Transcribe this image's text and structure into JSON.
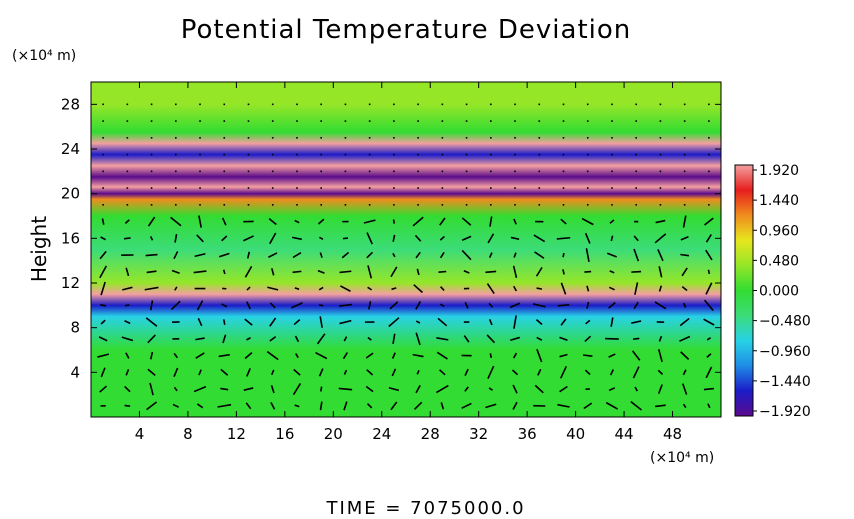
{
  "chart_data": {
    "type": "heatmap",
    "title": "Potential Temperature Deviation",
    "ylabel": "Height",
    "y_unit": "(×10⁴ m)",
    "x_unit": "(×10⁴ m)",
    "xlim": [
      0,
      52
    ],
    "ylim": [
      0,
      30
    ],
    "x_ticks": [
      "4",
      "8",
      "12",
      "16",
      "20",
      "24",
      "28",
      "32",
      "36",
      "40",
      "44",
      "48"
    ],
    "y_ticks": [
      "4",
      "8",
      "12",
      "16",
      "20",
      "24",
      "28"
    ],
    "colorbar": {
      "range": [
        -1.92,
        1.92
      ],
      "ticks": [
        "1.920",
        "1.440",
        "0.960",
        "0.480",
        "0.000",
        "−0.480",
        "−0.960",
        "−1.440",
        "−1.920"
      ],
      "colors": [
        "#5a0a8c",
        "#1c1cc8",
        "#1e8ce6",
        "#28d2e6",
        "#3cdc78",
        "#32dc32",
        "#96e628",
        "#e6e61e",
        "#f08c1e",
        "#e61e1e",
        "#f4a0a0"
      ]
    },
    "field_bands": [
      {
        "y": 28,
        "value": 0.25
      },
      {
        "y": 25.5,
        "value": 0.1
      },
      {
        "y": 24.5,
        "value": 1.9
      },
      {
        "y": 23.5,
        "value": -1.6
      },
      {
        "y": 22.5,
        "value": 1.9
      },
      {
        "y": 21.5,
        "value": -1.9
      },
      {
        "y": 20.6,
        "value": 1.9
      },
      {
        "y": 20,
        "value": -1.9
      },
      {
        "y": 19.5,
        "value": 1.2
      },
      {
        "y": 18,
        "value": 0.1
      },
      {
        "y": 15,
        "value": -0.2
      },
      {
        "y": 12,
        "value": 0.2
      },
      {
        "y": 11,
        "value": 1.9
      },
      {
        "y": 10,
        "value": -1.4
      },
      {
        "y": 9,
        "value": -0.6
      },
      {
        "y": 6,
        "value": 0.05
      },
      {
        "y": 2,
        "value": 0.15
      }
    ],
    "footer": "TIME  =  7075000.0"
  }
}
